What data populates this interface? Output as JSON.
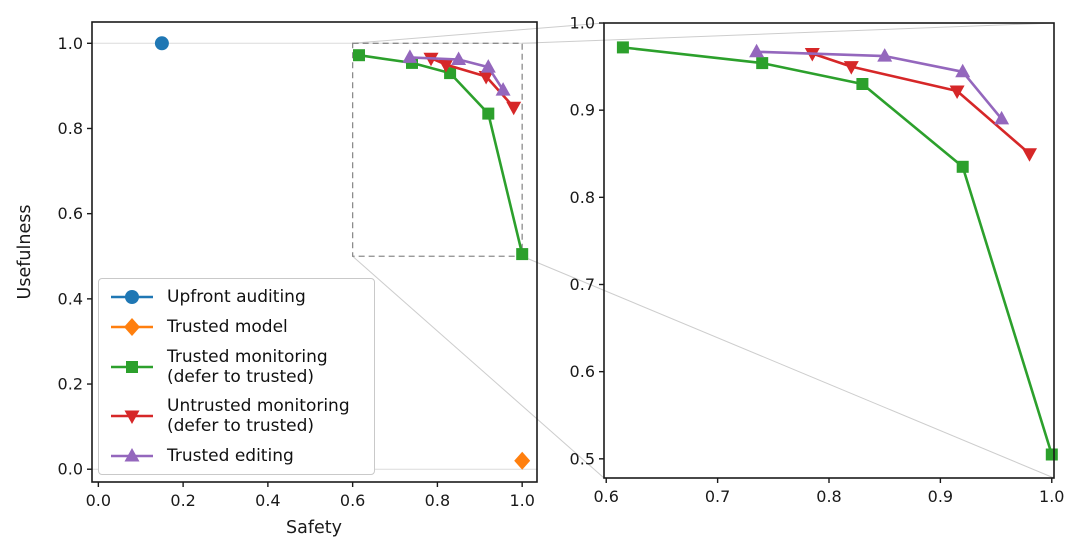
{
  "figure": {
    "background": "#ffffff",
    "axis_color": "#1a1a1a",
    "zoom_box_color": "#8c8c8c",
    "connector_color": "#cdcdcd",
    "reference_line_color": "#dcdcdc"
  },
  "chart_data": {
    "type": "line",
    "title": "",
    "grid": false,
    "legend_position": "lower left of main panel",
    "panels": [
      {
        "name": "main",
        "xlabel": "Safety",
        "ylabel": "Usefulness",
        "xlim": [
          -0.015,
          1.035
        ],
        "ylim": [
          -0.03,
          1.05
        ],
        "xticks": [
          "0.0",
          "0.2",
          "0.4",
          "0.6",
          "0.8",
          "1.0"
        ],
        "xtick_vals": [
          0.0,
          0.2,
          0.4,
          0.6,
          0.8,
          1.0
        ],
        "yticks": [
          "0.0",
          "0.2",
          "0.4",
          "0.6",
          "0.8",
          "1.0"
        ],
        "ytick_vals": [
          0.0,
          0.2,
          0.4,
          0.6,
          0.8,
          1.0
        ],
        "ref_hlines": [
          0.0,
          1.0
        ],
        "zoom_box": {
          "x0": 0.6,
          "x1": 1.0,
          "y0": 0.5,
          "y1": 1.0
        },
        "series_keys": [
          "upfront_auditing",
          "trusted_model",
          "trusted_monitoring",
          "untrusted_monitoring",
          "trusted_editing"
        ]
      },
      {
        "name": "zoom-inset",
        "xlabel": "",
        "ylabel": "",
        "xlim": [
          0.598,
          1.002
        ],
        "ylim": [
          0.478,
          1.0
        ],
        "xticks": [
          "0.6",
          "0.7",
          "0.8",
          "0.9",
          "1.0"
        ],
        "xtick_vals": [
          0.6,
          0.7,
          0.8,
          0.9,
          1.0
        ],
        "yticks": [
          "0.5",
          "0.6",
          "0.7",
          "0.8",
          "0.9",
          "1.0"
        ],
        "ytick_vals": [
          0.5,
          0.6,
          0.7,
          0.8,
          0.9,
          1.0
        ],
        "ref_hlines": [],
        "series_keys": [
          "trusted_monitoring",
          "untrusted_monitoring",
          "trusted_editing"
        ]
      }
    ],
    "series": {
      "upfront_auditing": {
        "label_lines": [
          "Upfront auditing"
        ],
        "color": "#1f77b4",
        "marker": "circle",
        "points": [
          [
            0.15,
            1.0
          ]
        ]
      },
      "trusted_model": {
        "label_lines": [
          "Trusted model"
        ],
        "color": "#ff7f0e",
        "marker": "diamond",
        "points": [
          [
            1.0,
            0.02
          ]
        ]
      },
      "trusted_monitoring": {
        "label_lines": [
          "Trusted monitoring",
          "(defer to trusted)"
        ],
        "color": "#2ca02c",
        "marker": "square",
        "points": [
          [
            0.615,
            0.972
          ],
          [
            0.74,
            0.954
          ],
          [
            0.83,
            0.93
          ],
          [
            0.92,
            0.835
          ],
          [
            1.0,
            0.505
          ]
        ]
      },
      "untrusted_monitoring": {
        "label_lines": [
          "Untrusted monitoring",
          "(defer to trusted)"
        ],
        "color": "#d62728",
        "marker": "triangle-down",
        "points": [
          [
            0.785,
            0.965
          ],
          [
            0.82,
            0.95
          ],
          [
            0.915,
            0.922
          ],
          [
            0.98,
            0.85
          ]
        ]
      },
      "trusted_editing": {
        "label_lines": [
          "Trusted editing"
        ],
        "color": "#9467bd",
        "marker": "triangle-up",
        "points": [
          [
            0.735,
            0.967
          ],
          [
            0.85,
            0.962
          ],
          [
            0.92,
            0.944
          ],
          [
            0.955,
            0.89
          ]
        ]
      }
    },
    "legend_order": [
      "upfront_auditing",
      "trusted_model",
      "trusted_monitoring",
      "untrusted_monitoring",
      "trusted_editing"
    ]
  }
}
